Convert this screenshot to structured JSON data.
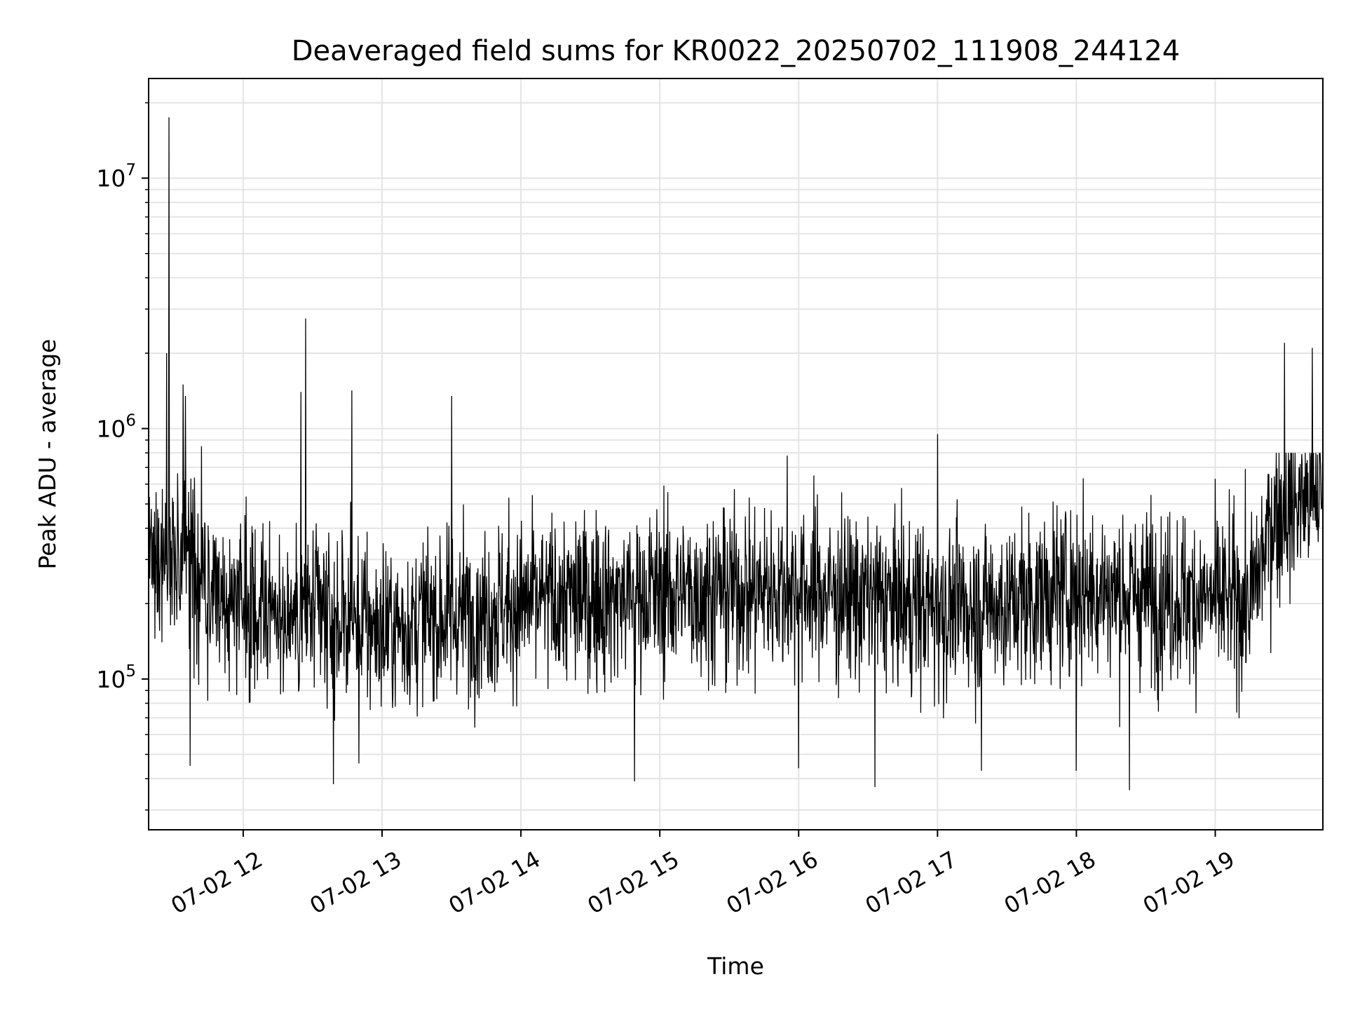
{
  "chart_data": {
    "type": "line",
    "title": "Deaveraged field sums for KR0022_20250702_111908_244124",
    "xlabel": "Time",
    "ylabel": "Peak ADU - average",
    "yscale": "log",
    "ylim": [
      25000,
      25000000
    ],
    "xlim": [
      "2025-07-02T11:19:08",
      "2025-07-02T19:46:30"
    ],
    "x_ticks": [
      {
        "t": "2025-07-02T12:00:00",
        "label": "07-02 12"
      },
      {
        "t": "2025-07-02T13:00:00",
        "label": "07-02 13"
      },
      {
        "t": "2025-07-02T14:00:00",
        "label": "07-02 14"
      },
      {
        "t": "2025-07-02T15:00:00",
        "label": "07-02 15"
      },
      {
        "t": "2025-07-02T16:00:00",
        "label": "07-02 16"
      },
      {
        "t": "2025-07-02T17:00:00",
        "label": "07-02 17"
      },
      {
        "t": "2025-07-02T18:00:00",
        "label": "07-02 18"
      },
      {
        "t": "2025-07-02T19:00:00",
        "label": "07-02 19"
      }
    ],
    "y_ticks": [
      {
        "value": 100000,
        "base": "10",
        "exp": "5"
      },
      {
        "value": 1000000,
        "base": "10",
        "exp": "6"
      },
      {
        "value": 10000000,
        "base": "10",
        "exp": "7"
      }
    ],
    "grid": true,
    "line_color": "#000000",
    "baseline_profile": [
      {
        "t": "2025-07-02T11:19:08",
        "v": 300000
      },
      {
        "t": "2025-07-02T11:35:00",
        "v": 320000
      },
      {
        "t": "2025-07-02T11:50:00",
        "v": 200000
      },
      {
        "t": "2025-07-02T12:30:00",
        "v": 180000
      },
      {
        "t": "2025-07-02T13:00:00",
        "v": 160000
      },
      {
        "t": "2025-07-02T14:00:00",
        "v": 200000
      },
      {
        "t": "2025-07-02T15:00:00",
        "v": 220000
      },
      {
        "t": "2025-07-02T16:00:00",
        "v": 230000
      },
      {
        "t": "2025-07-02T17:00:00",
        "v": 190000
      },
      {
        "t": "2025-07-02T17:30:00",
        "v": 200000
      },
      {
        "t": "2025-07-02T18:00:00",
        "v": 230000
      },
      {
        "t": "2025-07-02T19:15:00",
        "v": 200000
      },
      {
        "t": "2025-07-02T19:25:00",
        "v": 450000
      },
      {
        "t": "2025-07-02T19:46:30",
        "v": 560000
      }
    ],
    "spikes": [
      {
        "t": "2025-07-02T11:28:00",
        "v": 17500000
      },
      {
        "t": "2025-07-02T11:27:00",
        "v": 2000000
      },
      {
        "t": "2025-07-02T11:34:00",
        "v": 1500000
      },
      {
        "t": "2025-07-02T11:35:00",
        "v": 1350000
      },
      {
        "t": "2025-07-02T11:42:00",
        "v": 850000
      },
      {
        "t": "2025-07-02T12:25:00",
        "v": 1400000
      },
      {
        "t": "2025-07-02T12:27:00",
        "v": 2750000
      },
      {
        "t": "2025-07-02T12:47:00",
        "v": 1420000
      },
      {
        "t": "2025-07-02T13:30:00",
        "v": 1350000
      },
      {
        "t": "2025-07-02T15:55:00",
        "v": 780000
      },
      {
        "t": "2025-07-02T17:00:00",
        "v": 950000
      },
      {
        "t": "2025-07-02T19:30:00",
        "v": 2200000
      },
      {
        "t": "2025-07-02T19:42:00",
        "v": 2100000
      }
    ],
    "dips": [
      {
        "t": "2025-07-02T11:37:00",
        "v": 45000
      },
      {
        "t": "2025-07-02T12:39:00",
        "v": 38000
      },
      {
        "t": "2025-07-02T12:50:00",
        "v": 46000
      },
      {
        "t": "2025-07-02T14:49:00",
        "v": 39000
      },
      {
        "t": "2025-07-02T16:00:00",
        "v": 44000
      },
      {
        "t": "2025-07-02T16:33:00",
        "v": 37000
      },
      {
        "t": "2025-07-02T17:19:00",
        "v": 43000
      },
      {
        "t": "2025-07-02T18:00:00",
        "v": 43000
      },
      {
        "t": "2025-07-02T18:23:00",
        "v": 36000
      }
    ]
  }
}
